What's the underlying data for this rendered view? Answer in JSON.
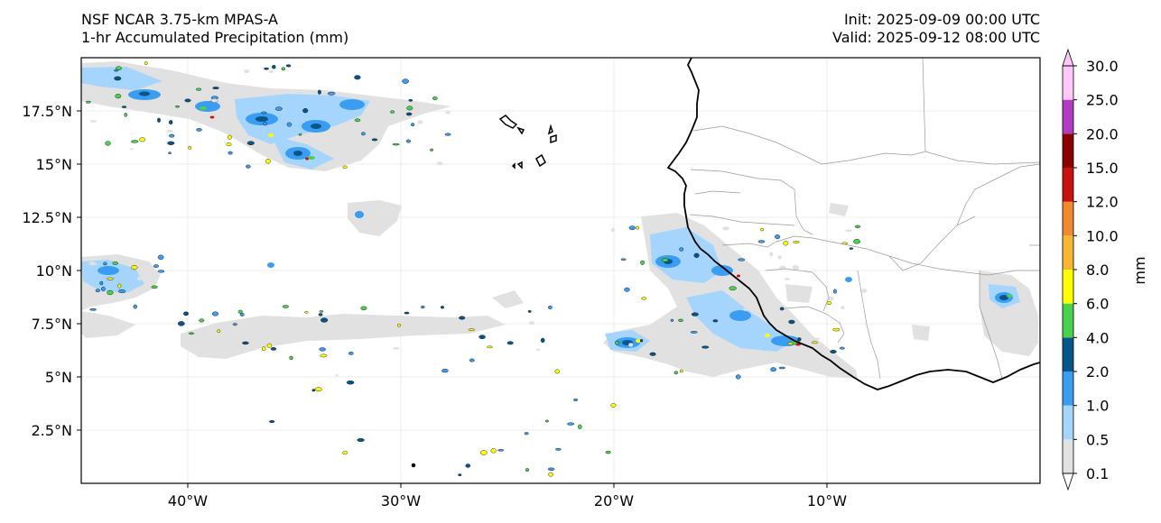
{
  "header": {
    "model": "NSF NCAR 3.75-km MPAS-A",
    "field": "1-hr Accumulated Precipitation (mm)",
    "init": "Init: 2025-09-09 00:00 UTC",
    "valid": "Valid: 2025-09-12 08:00 UTC"
  },
  "map": {
    "lon_range": [
      -45,
      0
    ],
    "lat_range": [
      0,
      20
    ],
    "lon_ticks": [
      {
        "value": -40,
        "label": "40°W"
      },
      {
        "value": -30,
        "label": "30°W"
      },
      {
        "value": -20,
        "label": "20°W"
      },
      {
        "value": -10,
        "label": "10°W"
      }
    ],
    "lat_ticks": [
      {
        "value": 17.5,
        "label": "17.5°N"
      },
      {
        "value": 15,
        "label": "15°N"
      },
      {
        "value": 12.5,
        "label": "12.5°N"
      },
      {
        "value": 10,
        "label": "10°N"
      },
      {
        "value": 7.5,
        "label": "7.5°N"
      },
      {
        "value": 5,
        "label": "5°N"
      },
      {
        "value": 2.5,
        "label": "2.5°N"
      }
    ],
    "gridlines": true
  },
  "colorbar": {
    "unit": "mm",
    "levels": [
      "0.1",
      "0.5",
      "1.0",
      "2.0",
      "4.0",
      "6.0",
      "8.0",
      "10.0",
      "12.0",
      "15.0",
      "20.0",
      "25.0",
      "30.0"
    ],
    "colors": [
      "#e1e1e1",
      "#a5d5fd",
      "#3a9df1",
      "#06568a",
      "#48d24d",
      "#ffff00",
      "#f7b733",
      "#ee8b30",
      "#c8120f",
      "#880000",
      "#b13cbf",
      "#fec8f8"
    ],
    "extend": "both"
  }
}
